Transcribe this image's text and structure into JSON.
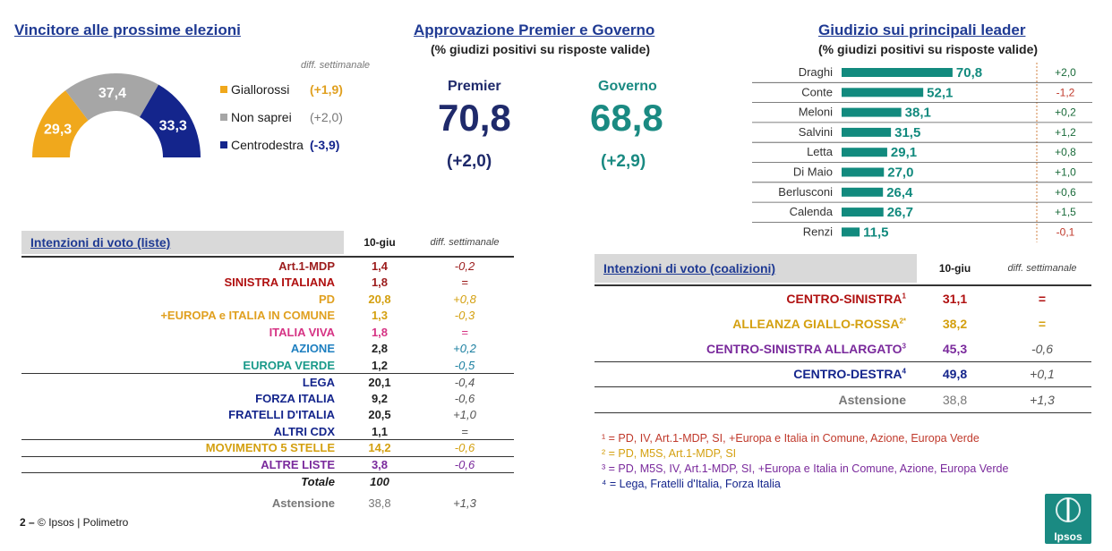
{
  "winner": {
    "title": "Vincitore alle prossime elezioni",
    "diff_header": "diff. settimanale",
    "chart_data": {
      "type": "pie",
      "categories": [
        "Giallorossi",
        "Non saprei",
        "Centrodestra"
      ],
      "values": [
        29.3,
        37.4,
        33.3
      ],
      "labels": [
        "29,3",
        "37,4",
        "33,3"
      ],
      "diffs": [
        "(+1,9)",
        "(+2,0)",
        "(-3,9)"
      ],
      "colors": [
        "#f0a81c",
        "#a6a6a6",
        "#14258c"
      ]
    }
  },
  "approval": {
    "title": "Approvazione Premier e Governo",
    "subtitle": "(% giudizi positivi su risposte valide)",
    "premier": {
      "label": "Premier",
      "value": "70,8",
      "diff": "(+2,0)",
      "color": "#1f2a6b"
    },
    "governo": {
      "label": "Governo",
      "value": "68,8",
      "diff": "(+2,9)",
      "color": "#1a8a82"
    }
  },
  "leaders": {
    "title": "Giudizio sui principali leader",
    "subtitle": "(% giudizi positivi su risposte valide)",
    "chart_data": {
      "type": "bar",
      "orientation": "horizontal",
      "categories": [
        "Draghi",
        "Conte",
        "Meloni",
        "Salvini",
        "Letta",
        "Di Maio",
        "Berlusconi",
        "Calenda",
        "Renzi"
      ],
      "values": [
        70.8,
        52.1,
        38.1,
        31.5,
        29.1,
        27.0,
        26.4,
        26.7,
        11.5
      ],
      "labels": [
        "70,8",
        "52,1",
        "38,1",
        "31,5",
        "29,1",
        "27,0",
        "26,4",
        "26,7",
        "11,5"
      ],
      "diffs": [
        "+2,0",
        "-1,2",
        "+0,2",
        "+1,2",
        "+0,8",
        "+1,0",
        "+0,6",
        "+1,5",
        "-0,1"
      ],
      "diff_colors": [
        "#1a6b3a",
        "#c0392b",
        "#1a6b3a",
        "#1a6b3a",
        "#1a6b3a",
        "#1a6b3a",
        "#1a6b3a",
        "#1a6b3a",
        "#c0392b"
      ],
      "bar_color": "#128a7e"
    }
  },
  "lists": {
    "title": "Intenzioni di voto (liste)",
    "col_date": "10-giu",
    "col_diff": "diff. settimanale",
    "rows": [
      {
        "name": "Art.1-MDP",
        "value": "1,4",
        "diff": "-0,2",
        "color": "#9c1c1c",
        "line_after": false
      },
      {
        "name": "SINISTRA ITALIANA",
        "value": "1,8",
        "diff": "=",
        "color": "#b01010",
        "line_after": false
      },
      {
        "name": "PD",
        "value": "20,8",
        "diff": "+0,8",
        "color": "#e0a020",
        "line_after": false
      },
      {
        "name": "+EUROPA e ITALIA IN COMUNE",
        "value": "1,3",
        "diff": "-0,3",
        "color": "#e0a020",
        "line_after": false
      },
      {
        "name": "ITALIA VIVA",
        "value": "1,8",
        "diff": "=",
        "color": "#d63384",
        "line_after": false
      },
      {
        "name": "AZIONE",
        "value": "2,8",
        "diff": "+0,2",
        "color": "#1e7fc0",
        "line_after": false
      },
      {
        "name": "EUROPA VERDE",
        "value": "1,2",
        "diff": "-0,5",
        "color": "#1a9a8a",
        "line_after": true
      },
      {
        "name": "LEGA",
        "value": "20,1",
        "diff": "-0,4",
        "color": "#14258c",
        "line_after": false
      },
      {
        "name": "FORZA ITALIA",
        "value": "9,2",
        "diff": "-0,6",
        "color": "#14258c",
        "line_after": false
      },
      {
        "name": "FRATELLI D'ITALIA",
        "value": "20,5",
        "diff": "+1,0",
        "color": "#14258c",
        "line_after": false
      },
      {
        "name": "ALTRI CDX",
        "value": "1,1",
        "diff": "=",
        "color": "#14258c",
        "line_after": true
      },
      {
        "name": "MOVIMENTO 5 STELLE",
        "value": "14,2",
        "diff": "-0,6",
        "color": "#d4a010",
        "line_after": true
      },
      {
        "name": "ALTRE LISTE",
        "value": "3,8",
        "diff": "-0,6",
        "color": "#7a2a9c",
        "line_after": true
      }
    ],
    "total_label": "Totale",
    "total_value": "100",
    "abst_label": "Astensione",
    "abst_value": "38,8",
    "abst_diff": "+1,3"
  },
  "coalitions": {
    "title": "Intenzioni di voto (coalizioni)",
    "col_date": "10-giu",
    "col_diff": "diff. settimanale",
    "rows": [
      {
        "name": "CENTRO-SINISTRA",
        "sup": "1",
        "value": "31,1",
        "diff": "=",
        "color": "#b01010",
        "line_after": false
      },
      {
        "name": "ALLEANZA GIALLO-ROSSA",
        "sup": "2*",
        "value": "38,2",
        "diff": "=",
        "color": "#d4a010",
        "line_after": false
      },
      {
        "name": "CENTRO-SINISTRA ALLARGATO",
        "sup": "3",
        "value": "45,3",
        "diff": "-0,6",
        "color": "#7a2a9c",
        "line_after": true
      },
      {
        "name": "CENTRO-DESTRA",
        "sup": "4",
        "value": "49,8",
        "diff": "+0,1",
        "color": "#14258c",
        "line_after": true
      }
    ],
    "abst_label": "Astensione",
    "abst_value": "38,8",
    "abst_diff": "+1,3"
  },
  "notes": [
    {
      "text": "¹ = PD, IV, Art.1-MDP, SI, +Europa e Italia in Comune, Azione, Europa Verde",
      "color": "#c0392b"
    },
    {
      "text": "² = PD, M5S, Art.1-MDP, SI",
      "color": "#d4a010"
    },
    {
      "text": "³ = PD, M5S, IV, Art.1-MDP, SI, +Europa e Italia in Comune, Azione, Europa Verde",
      "color": "#7a2a9c"
    },
    {
      "text": "⁴ = Lega, Fratelli d'Italia, Forza Italia",
      "color": "#14258c"
    }
  ],
  "footer": {
    "page": "2 –",
    "source": "© Ipsos | Polimetro",
    "logo": "Ipsos",
    "logo_color": "#1a8a82"
  }
}
